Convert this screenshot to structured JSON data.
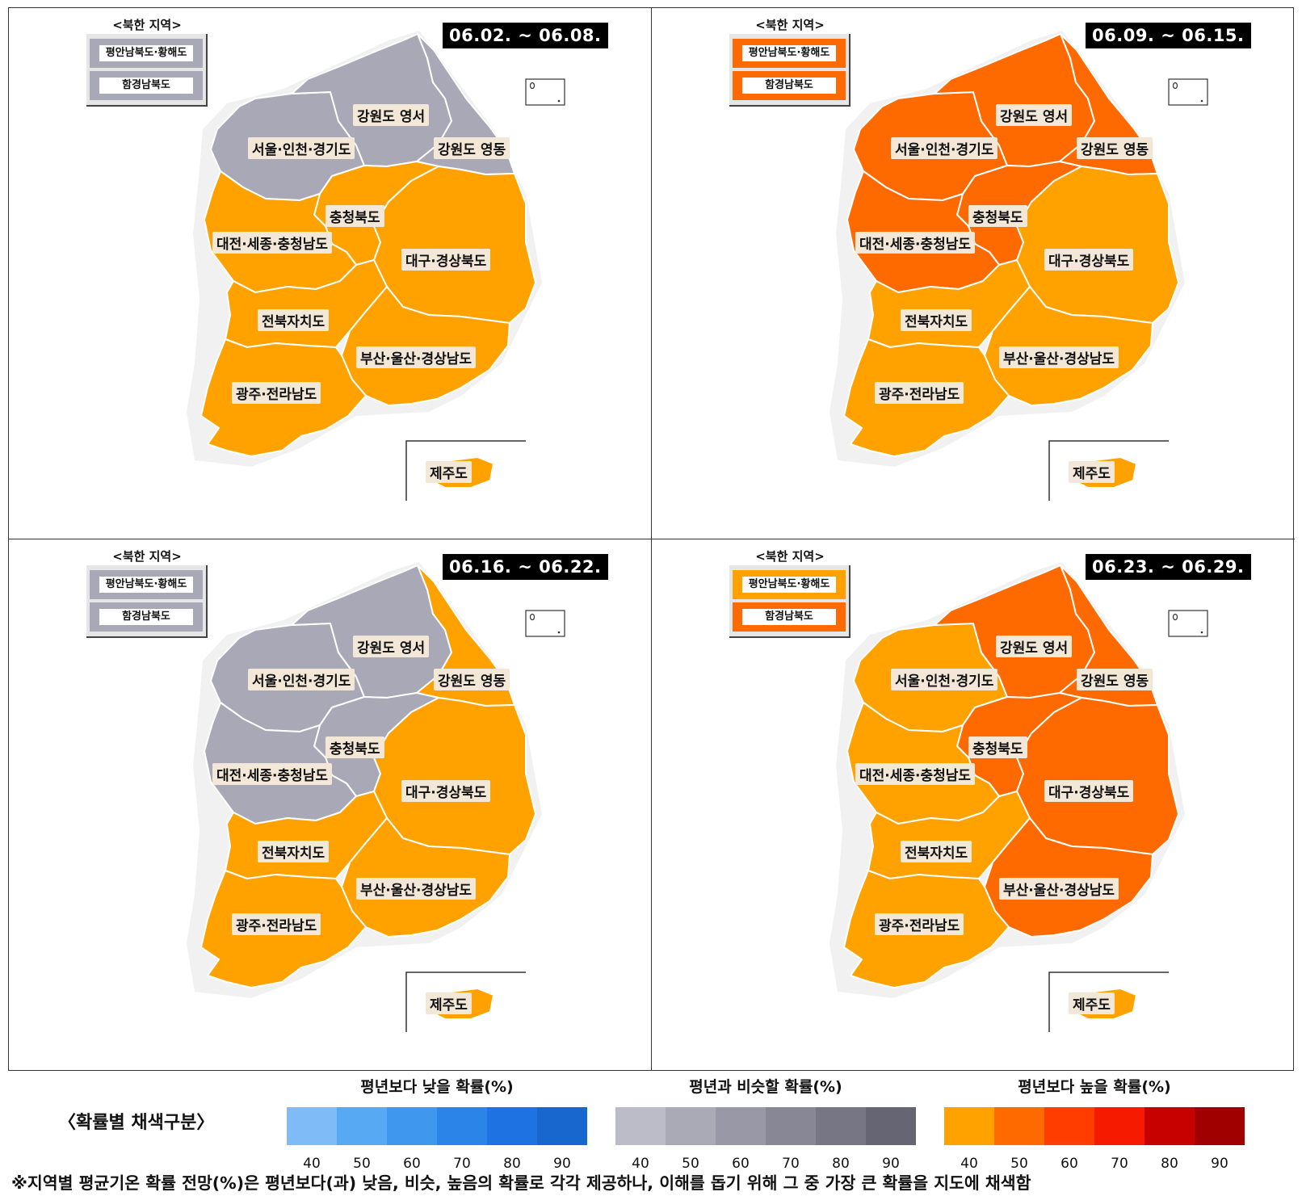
{
  "map": {
    "north_korea_title": "<북한 지역>",
    "regions": [
      "서울·인천·경기도",
      "강원도 영서",
      "강원도 영동",
      "충청북도",
      "대전·세종·충청남도",
      "대구·경상북도",
      "전북자치도",
      "부산·울산·경상남도",
      "광주·전라남도",
      "제주도"
    ],
    "nk_regions": [
      "평안남북도·황해도",
      "함경남북도"
    ]
  },
  "panels": [
    {
      "week": "06.02. ~ 06.08.",
      "nk_colors": [
        "#a9a8b6",
        "#a9a8b6"
      ],
      "colors": {
        "gyeonggi": "#a9a8b6",
        "gw_west": "#a9a8b6",
        "gw_east": "#a9a8b6",
        "chungbuk": "#ffa200",
        "chungnam": "#ffa200",
        "gyeongbuk": "#ffa200",
        "jeonbuk": "#ffa200",
        "gyeongnam": "#ffa200",
        "jeonnam": "#ffa200",
        "jeju": "#ffa200"
      }
    },
    {
      "week": "06.09. ~ 06.15.",
      "nk_colors": [
        "#ff6a00",
        "#ff6a00"
      ],
      "colors": {
        "gyeonggi": "#ff6a00",
        "gw_west": "#ff6a00",
        "gw_east": "#ff6a00",
        "chungbuk": "#ff6a00",
        "chungnam": "#ff6a00",
        "gyeongbuk": "#ffa200",
        "jeonbuk": "#ffa200",
        "gyeongnam": "#ffa200",
        "jeonnam": "#ffa200",
        "jeju": "#ffa200"
      }
    },
    {
      "week": "06.16. ~ 06.22.",
      "nk_colors": [
        "#a9a8b6",
        "#a9a8b6"
      ],
      "colors": {
        "gyeonggi": "#a9a8b6",
        "gw_west": "#a9a8b6",
        "gw_east": "#ffa200",
        "chungbuk": "#a9a8b6",
        "chungnam": "#a9a8b6",
        "gyeongbuk": "#ffa200",
        "jeonbuk": "#ffa200",
        "gyeongnam": "#ffa200",
        "jeonnam": "#ffa200",
        "jeju": "#ffa200"
      }
    },
    {
      "week": "06.23. ~ 06.29.",
      "nk_colors": [
        "#ffa200",
        "#ff6a00"
      ],
      "colors": {
        "gyeonggi": "#ffa200",
        "gw_west": "#ff6a00",
        "gw_east": "#ff6a00",
        "chungbuk": "#ff6a00",
        "chungnam": "#ffa200",
        "gyeongbuk": "#ff6a00",
        "jeonbuk": "#ffa200",
        "gyeongnam": "#ff6a00",
        "jeonnam": "#ffa200",
        "jeju": "#ffa200"
      }
    }
  ],
  "legend": {
    "heading": "〈확률별 채색구분〉",
    "groups": [
      {
        "title": "평년보다 낮을 확률(%)",
        "colors": [
          "#7fbcf7",
          "#58a9f3",
          "#3f97ee",
          "#2b84e8",
          "#1e72e2",
          "#1767cf"
        ],
        "ticks": [
          "40",
          "50",
          "60",
          "70",
          "80",
          "90"
        ]
      },
      {
        "title": "평년과 비슷할 확률(%)",
        "colors": [
          "#bcbbc8",
          "#aaa9b6",
          "#9998a6",
          "#888796",
          "#777685",
          "#666574"
        ],
        "ticks": [
          "40",
          "50",
          "60",
          "70",
          "80",
          "90"
        ]
      },
      {
        "title": "평년보다 높을 확률(%)",
        "colors": [
          "#ffa200",
          "#ff6a00",
          "#ff3d00",
          "#f51a00",
          "#c70000",
          "#a00000"
        ],
        "ticks": [
          "40",
          "50",
          "60",
          "70",
          "80",
          "90"
        ]
      }
    ]
  },
  "footnote": "※지역별 평균기온 확률 전망(%)은 평년보다(과) 낮음, 비슷, 높음의 확률로 각각 제공하나, 이해를 돕기 위해 그 중 가장 큰 확률을 지도에 채색함"
}
